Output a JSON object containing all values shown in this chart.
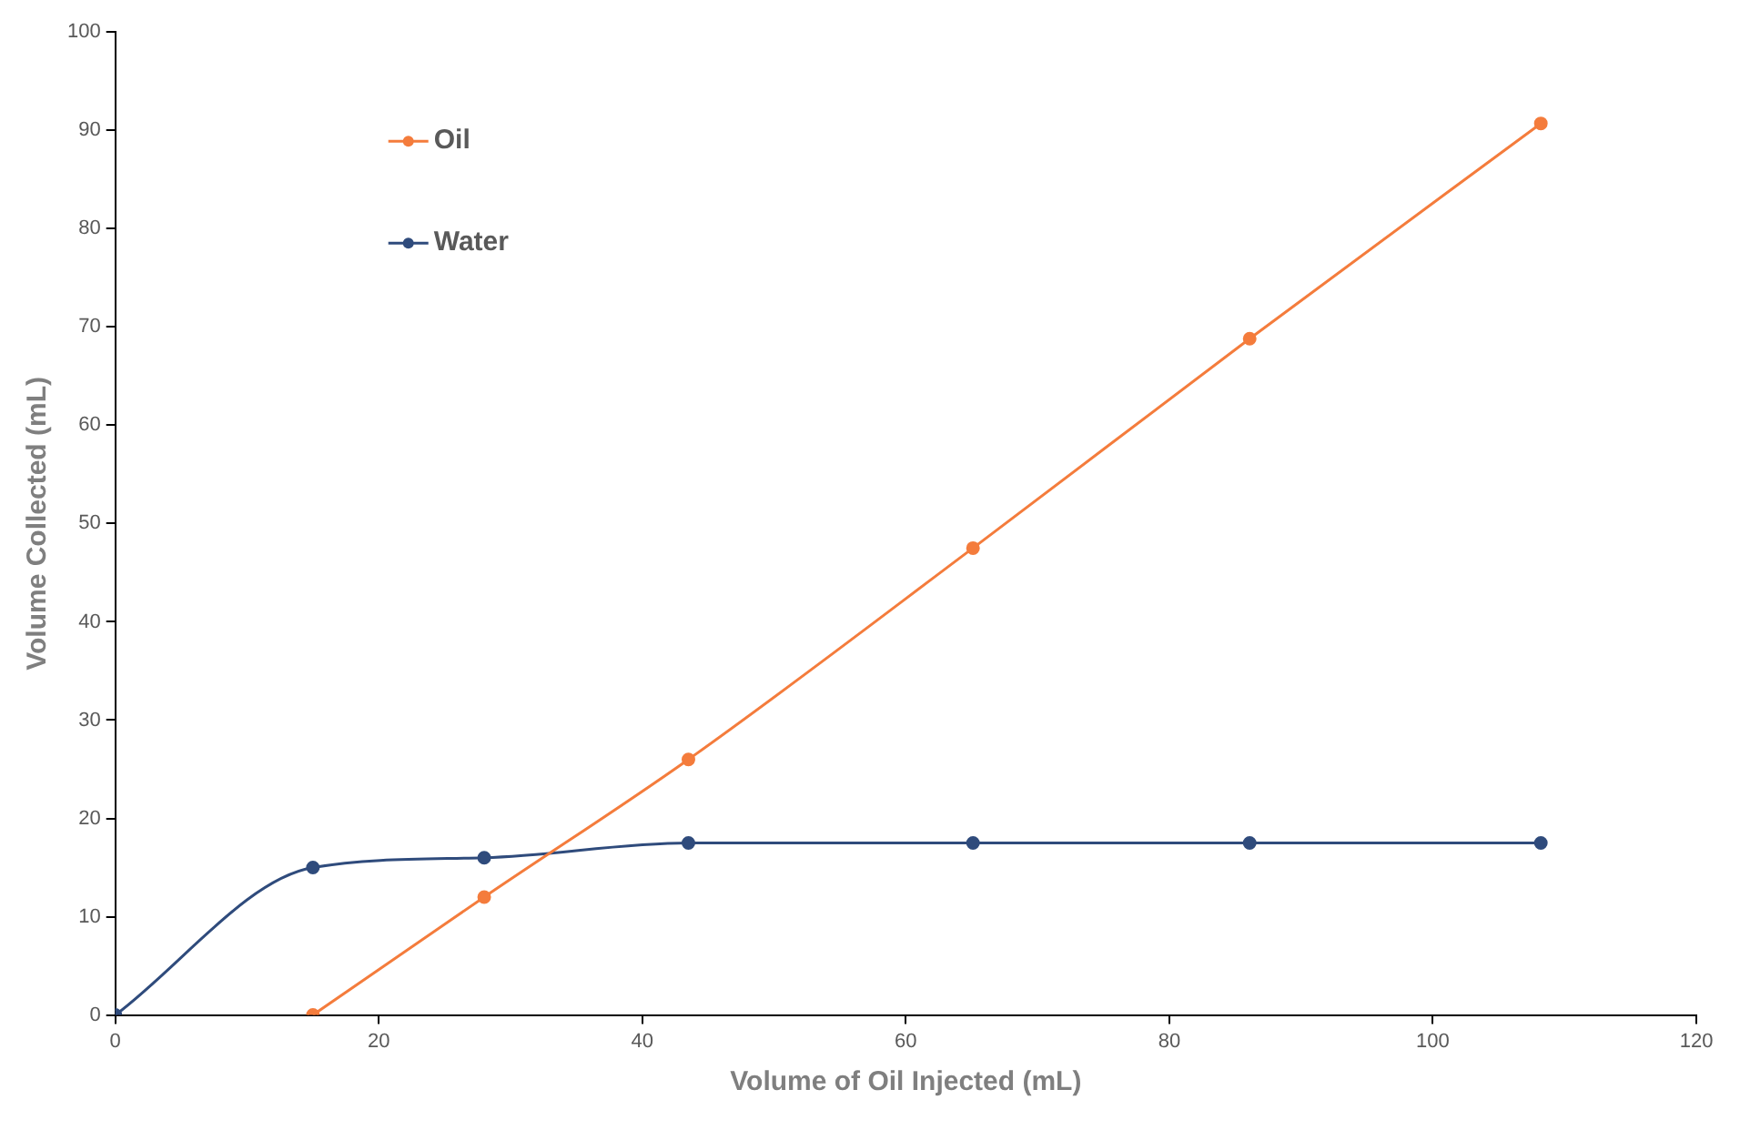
{
  "chart_data": {
    "type": "line",
    "xlabel": "Volume of Oil Injected (mL)",
    "ylabel": "Volume Collected (mL)",
    "xlim": [
      0,
      120
    ],
    "xticks": [
      0,
      20,
      40,
      60,
      80,
      100,
      120
    ],
    "ylim": [
      0,
      100
    ],
    "yticks": [
      0,
      10,
      20,
      30,
      40,
      50,
      60,
      70,
      80,
      90,
      100
    ],
    "grid": false,
    "legend": "top left",
    "marker": "circle",
    "series": [
      {
        "name": "Oil",
        "color": "#f47c3c",
        "x": [
          15,
          28,
          43.5,
          65.1,
          86.1,
          108.2
        ],
        "values": [
          0,
          12,
          26,
          47.5,
          68.8,
          90.7
        ]
      },
      {
        "name": "Water",
        "color": "#2f4b7c",
        "x": [
          0,
          15,
          28,
          43.5,
          65.1,
          86.1,
          108.2
        ],
        "values": [
          0,
          15,
          16,
          17.5,
          17.5,
          17.5,
          17.5
        ]
      }
    ]
  }
}
